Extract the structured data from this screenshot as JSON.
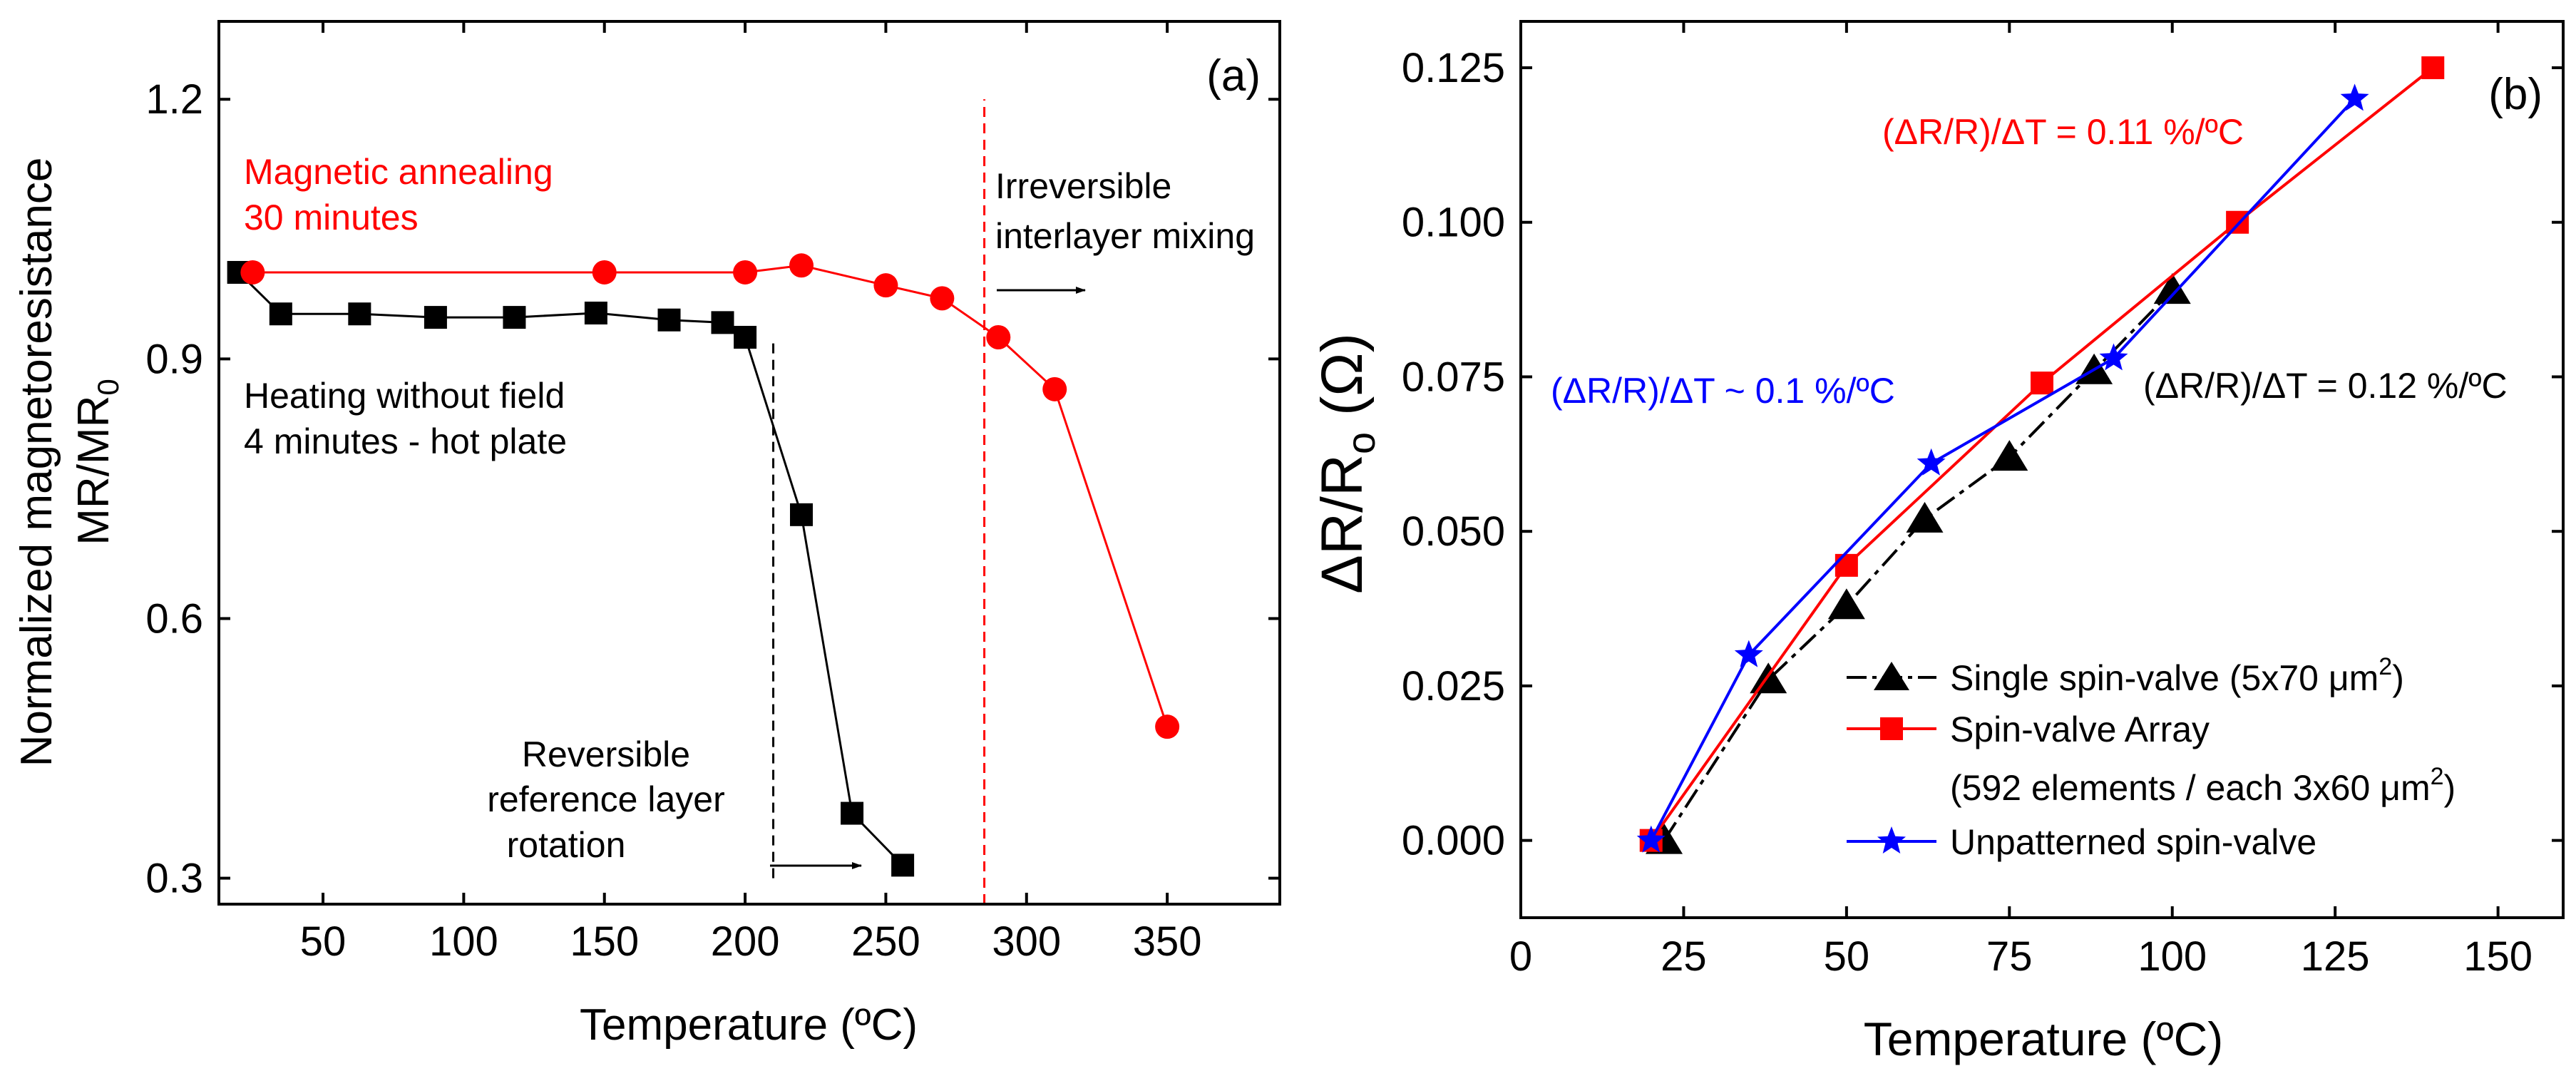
{
  "chart_data": [
    {
      "type": "line",
      "panel": "(a)",
      "xlabel": "Temperature (ºC)",
      "ylabel_line1": "Normalized magnetoresistance",
      "ylabel_line2": "MR/MR",
      "ylabel_sub": "0",
      "xlim": [
        13,
        390
      ],
      "ylim": [
        0.27,
        1.29
      ],
      "xticks": [
        50,
        100,
        150,
        200,
        250,
        300,
        350
      ],
      "yticks": [
        0.3,
        0.6,
        0.9,
        1.2
      ],
      "ytick_labels": [
        "0.3",
        "0.6",
        "0.9",
        "1.2"
      ],
      "series": [
        {
          "name": "Heating without field 4 minutes - hot plate",
          "color": "#000000",
          "marker": "square",
          "x": [
            20,
            35,
            63,
            90,
            118,
            147,
            173,
            192,
            200,
            220,
            238,
            256
          ],
          "y": [
            1.0,
            0.952,
            0.952,
            0.948,
            0.948,
            0.953,
            0.945,
            0.942,
            0.925,
            0.72,
            0.375,
            0.315
          ]
        },
        {
          "name": "Magnetic annealing 30 minutes",
          "color": "#ff0000",
          "marker": "circle",
          "x": [
            25,
            150,
            200,
            220,
            250,
            270,
            290,
            310,
            350
          ],
          "y": [
            1.0,
            1.0,
            1.0,
            1.008,
            0.985,
            0.97,
            0.925,
            0.865,
            0.475
          ]
        }
      ],
      "annotations": {
        "red_line1": "Magnetic annealing",
        "red_line2": "30 minutes",
        "black_line1": "Heating without field",
        "black_line2": "4 minutes - hot plate",
        "irrev_line1": "Irreversible",
        "irrev_line2": "interlayer mixing",
        "rev_line1": "Reversible",
        "rev_line2": "reference layer",
        "rev_line3": "rotation"
      },
      "reference_lines": [
        {
          "x": 210,
          "y_from": 0.3,
          "y_to": 0.92,
          "color": "#000000",
          "style": "dashed"
        },
        {
          "x": 285,
          "y_from": 0.27,
          "y_to": 1.2,
          "color": "#ff0000",
          "style": "dashed"
        }
      ]
    },
    {
      "type": "line",
      "panel": "(b)",
      "xlabel": "Temperature (ºC)",
      "ylabel": "ΔR/R",
      "ylabel_sub": "o",
      "ylabel_unit": " (Ω)",
      "xlim": [
        0,
        160
      ],
      "ylim": [
        -0.0125,
        0.1325
      ],
      "xticks": [
        0,
        25,
        50,
        75,
        100,
        125,
        150
      ],
      "yticks": [
        0.0,
        0.025,
        0.05,
        0.075,
        0.1,
        0.125
      ],
      "ytick_labels": [
        "0.000",
        "0.025",
        "0.050",
        "0.075",
        "0.100",
        "0.125"
      ],
      "series": [
        {
          "name": "Single spin-valve (5x70 μm",
          "name_sup": "2",
          "name_end": ")",
          "color": "#000000",
          "marker": "triangle",
          "style": "dashdot",
          "x": [
            22,
            38,
            50,
            62,
            75,
            88,
            100
          ],
          "y": [
            0.0,
            0.026,
            0.038,
            0.052,
            0.062,
            0.076,
            0.089
          ]
        },
        {
          "name": "Spin-valve Array",
          "name2": "(592 elements / each 3x60 μm",
          "name2_sup": "2",
          "name2_end": ")",
          "color": "#ff0000",
          "marker": "square",
          "style": "solid",
          "x": [
            20,
            50,
            80,
            110,
            140
          ],
          "y": [
            0.0,
            0.0445,
            0.074,
            0.1,
            0.125
          ]
        },
        {
          "name": "Unpatterned spin-valve",
          "color": "#0000ff",
          "marker": "star",
          "style": "solid",
          "x": [
            20,
            35,
            63,
            91,
            128
          ],
          "y": [
            0.0,
            0.03,
            0.061,
            0.078,
            0.12
          ]
        }
      ],
      "annotations": {
        "red": "(ΔR/R)/ΔT = 0.11 %/ºC",
        "blue": "(ΔR/R)/ΔT ~ 0.1 %/ºC",
        "black": "(ΔR/R)/ΔT = 0.12 %/ºC"
      }
    }
  ]
}
